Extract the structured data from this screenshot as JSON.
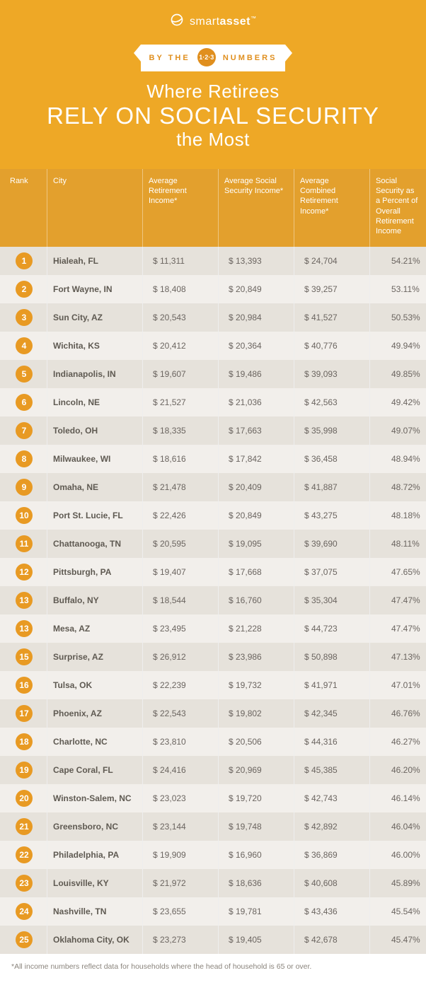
{
  "brand": {
    "name_light": "smart",
    "name_bold": "asset",
    "tm": "™"
  },
  "ribbon": {
    "left": "BY THE",
    "badge": "1·2·3",
    "right": "NUMBERS"
  },
  "title": {
    "line1": "Where Retirees",
    "line2": "RELY ON SOCIAL SECURITY",
    "line3": "the Most"
  },
  "columns": {
    "rank": "Rank",
    "city": "City",
    "ret": "Average Retirement Income*",
    "ss": "Average Social Security Income*",
    "comb": "Average Combined Retirement Income*",
    "pct": "Social Security as a Percent of Overall Retirement Income"
  },
  "rows": [
    {
      "rank": "1",
      "city": "Hialeah, FL",
      "ret": "$   11,311",
      "ss": "$ 13,393",
      "comb": "$ 24,704",
      "pct": "54.21%"
    },
    {
      "rank": "2",
      "city": "Fort Wayne, IN",
      "ret": "$ 18,408",
      "ss": "$ 20,849",
      "comb": "$ 39,257",
      "pct": "53.11%"
    },
    {
      "rank": "3",
      "city": "Sun City, AZ",
      "ret": "$ 20,543",
      "ss": "$ 20,984",
      "comb": "$  41,527",
      "pct": "50.53%"
    },
    {
      "rank": "4",
      "city": "Wichita, KS",
      "ret": "$  20,412",
      "ss": "$ 20,364",
      "comb": "$ 40,776",
      "pct": "49.94%"
    },
    {
      "rank": "5",
      "city": "Indianapolis, IN",
      "ret": "$  19,607",
      "ss": "$  19,486",
      "comb": "$ 39,093",
      "pct": "49.85%"
    },
    {
      "rank": "6",
      "city": "Lincoln, NE",
      "ret": "$  21,527",
      "ss": "$  21,036",
      "comb": "$ 42,563",
      "pct": "49.42%"
    },
    {
      "rank": "7",
      "city": "Toledo, OH",
      "ret": "$ 18,335",
      "ss": "$  17,663",
      "comb": "$ 35,998",
      "pct": "49.07%"
    },
    {
      "rank": "8",
      "city": "Milwaukee, WI",
      "ret": "$  18,616",
      "ss": "$  17,842",
      "comb": "$ 36,458",
      "pct": "48.94%"
    },
    {
      "rank": "9",
      "city": "Omaha, NE",
      "ret": "$  21,478",
      "ss": "$ 20,409",
      "comb": "$  41,887",
      "pct": "48.72%"
    },
    {
      "rank": "10",
      "city": "Port St. Lucie, FL",
      "ret": "$ 22,426",
      "ss": "$ 20,849",
      "comb": "$ 43,275",
      "pct": "48.18%"
    },
    {
      "rank": "11",
      "city": "Chattanooga, TN",
      "ret": "$ 20,595",
      "ss": "$  19,095",
      "comb": "$ 39,690",
      "pct": "48.11%"
    },
    {
      "rank": "12",
      "city": "Pittsburgh, PA",
      "ret": "$  19,407",
      "ss": "$  17,668",
      "comb": "$  37,075",
      "pct": "47.65%"
    },
    {
      "rank": "13",
      "city": "Buffalo, NY",
      "ret": "$ 18,544",
      "ss": "$  16,760",
      "comb": "$ 35,304",
      "pct": "47.47%"
    },
    {
      "rank": "13",
      "city": "Mesa, AZ",
      "ret": "$ 23,495",
      "ss": "$  21,228",
      "comb": "$ 44,723",
      "pct": "47.47%"
    },
    {
      "rank": "15",
      "city": "Surprise, AZ",
      "ret": "$  26,912",
      "ss": "$ 23,986",
      "comb": "$ 50,898",
      "pct": "47.13%"
    },
    {
      "rank": "16",
      "city": "Tulsa, OK",
      "ret": "$ 22,239",
      "ss": "$  19,732",
      "comb": "$   41,971",
      "pct": "47.01%"
    },
    {
      "rank": "17",
      "city": "Phoenix, AZ",
      "ret": "$ 22,543",
      "ss": "$  19,802",
      "comb": "$ 42,345",
      "pct": "46.76%"
    },
    {
      "rank": "18",
      "city": "Charlotte, NC",
      "ret": "$  23,810",
      "ss": "$ 20,506",
      "comb": "$  44,316",
      "pct": "46.27%"
    },
    {
      "rank": "19",
      "city": "Cape Coral, FL",
      "ret": "$  24,416",
      "ss": "$ 20,969",
      "comb": "$ 45,385",
      "pct": "46.20%"
    },
    {
      "rank": "20",
      "city": "Winston-Salem, NC",
      "ret": "$ 23,023",
      "ss": "$  19,720",
      "comb": "$  42,743",
      "pct": "46.14%"
    },
    {
      "rank": "21",
      "city": "Greensboro, NC",
      "ret": "$  23,144",
      "ss": "$   19,748",
      "comb": "$ 42,892",
      "pct": "46.04%"
    },
    {
      "rank": "22",
      "city": "Philadelphia, PA",
      "ret": "$ 19,909",
      "ss": "$ 16,960",
      "comb": "$ 36,869",
      "pct": "46.00%"
    },
    {
      "rank": "23",
      "city": "Louisville, KY",
      "ret": "$  21,972",
      "ss": "$  18,636",
      "comb": "$ 40,608",
      "pct": "45.89%"
    },
    {
      "rank": "24",
      "city": "Nashville, TN",
      "ret": "$ 23,655",
      "ss": "$   19,781",
      "comb": "$ 43,436",
      "pct": "45.54%"
    },
    {
      "rank": "25",
      "city": "Oklahoma City, OK",
      "ret": "$ 23,273",
      "ss": "$  19,405",
      "comb": "$  42,678",
      "pct": "45.47%"
    }
  ],
  "footnote": "*All income numbers reflect data for households where the head of household is 65 or over.",
  "colors": {
    "header_bg": "#eea826",
    "thead_bg": "#e3a02d",
    "row_odd": "#e6e2db",
    "row_even": "#f2efeb",
    "badge_bg": "#e89a23",
    "text": "#6b6560"
  }
}
